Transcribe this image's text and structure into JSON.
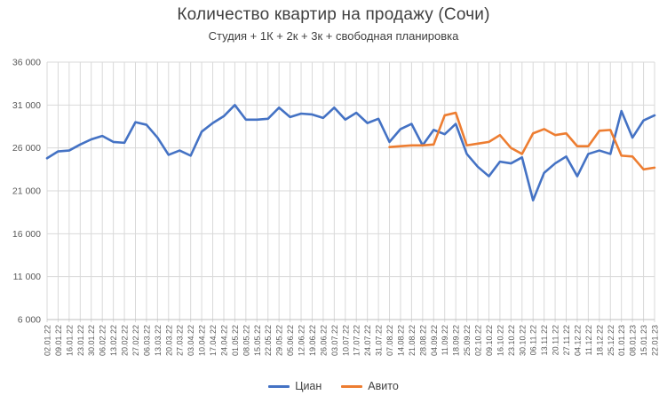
{
  "chart_data": {
    "type": "line",
    "title": "Количество квартир на продажу (Сочи)",
    "subtitle": "Студия + 1К + 2к + 3к + свободная планировка",
    "xlabel": "",
    "ylabel": "",
    "ylim": [
      6000,
      36000
    ],
    "grid": "both",
    "legend_position": "bottom",
    "grid_color": "#D9D9D9",
    "axis_color": "#BFBFBF",
    "tick_label_color": "#595959",
    "y_ticks": [
      {
        "value": 36000,
        "label": "36 000"
      },
      {
        "value": 31000,
        "label": "31 000"
      },
      {
        "value": 26000,
        "label": "26 000"
      },
      {
        "value": 21000,
        "label": "21 000"
      },
      {
        "value": 16000,
        "label": "16 000"
      },
      {
        "value": 11000,
        "label": "11 000"
      },
      {
        "value": 6000,
        "label": "6 000"
      }
    ],
    "categories": [
      "02.01.22",
      "09.01.22",
      "16.01.22",
      "23.01.22",
      "30.01.22",
      "06.02.22",
      "13.02.22",
      "20.02.22",
      "27.02.22",
      "06.03.22",
      "13.03.22",
      "20.03.22",
      "27.03.22",
      "03.04.22",
      "10.04.22",
      "17.04.22",
      "24.04.22",
      "01.05.22",
      "08.05.22",
      "15.05.22",
      "22.05.22",
      "29.05.22",
      "05.06.22",
      "12.06.22",
      "19.06.22",
      "26.06.22",
      "03.07.22",
      "10.07.22",
      "17.07.22",
      "24.07.22",
      "31.07.22",
      "07.08.22",
      "14.08.22",
      "21.08.22",
      "28.08.22",
      "04.09.22",
      "11.09.22",
      "18.09.22",
      "25.09.22",
      "02.10.22",
      "09.10.22",
      "16.10.22",
      "23.10.22",
      "30.10.22",
      "06.11.22",
      "13.11.22",
      "20.11.22",
      "27.11.22",
      "04.12.22",
      "11.12.22",
      "18.12.22",
      "25.12.22",
      "01.01.23",
      "08.01.23",
      "15.01.23",
      "22.01.23"
    ],
    "series": [
      {
        "name": "Циан",
        "color": "#4472C4",
        "values": [
          24800,
          25600,
          25700,
          26400,
          27000,
          27400,
          26700,
          26600,
          29000,
          28700,
          27200,
          25200,
          25700,
          25100,
          27900,
          28900,
          29700,
          31000,
          29300,
          29300,
          29400,
          30700,
          29600,
          30000,
          29900,
          29500,
          30700,
          29300,
          30100,
          28900,
          29400,
          26700,
          28200,
          28800,
          26300,
          28100,
          27600,
          28800,
          25300,
          23800,
          22700,
          24400,
          24200,
          24900,
          19900,
          23100,
          24200,
          25000,
          22700,
          25300,
          25700,
          25300,
          30300,
          27200,
          29200,
          29800
        ]
      },
      {
        "name": "Авито",
        "color": "#ED7D31",
        "values": [
          null,
          null,
          null,
          null,
          null,
          null,
          null,
          null,
          null,
          null,
          null,
          null,
          null,
          null,
          null,
          null,
          null,
          null,
          null,
          null,
          null,
          null,
          null,
          null,
          null,
          null,
          null,
          null,
          null,
          null,
          null,
          26100,
          26200,
          26300,
          26300,
          26400,
          29800,
          30100,
          26300,
          26500,
          26700,
          27500,
          26000,
          25300,
          27700,
          28200,
          27500,
          27700,
          26200,
          26200,
          28000,
          28100,
          25100,
          25000,
          23500,
          23700
        ]
      }
    ]
  }
}
